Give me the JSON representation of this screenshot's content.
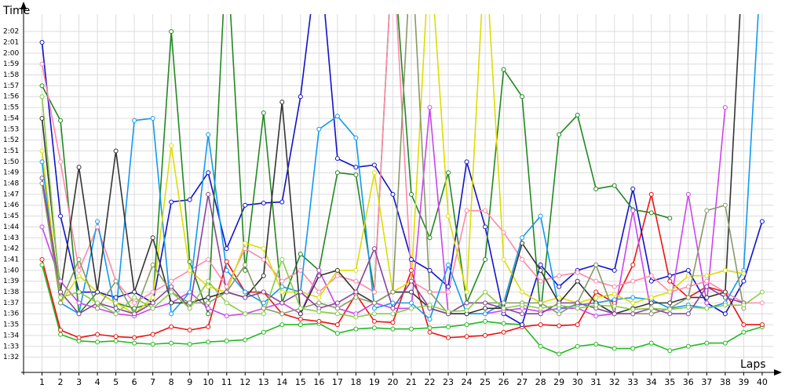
{
  "chart_data": {
    "type": "line",
    "ylabel": "Time",
    "xlabel": "Laps",
    "x": [
      1,
      2,
      3,
      4,
      5,
      6,
      7,
      8,
      9,
      10,
      11,
      12,
      13,
      14,
      15,
      16,
      17,
      18,
      19,
      20,
      21,
      22,
      23,
      24,
      25,
      26,
      27,
      28,
      29,
      30,
      31,
      32,
      33,
      34,
      35,
      36,
      37,
      38,
      39,
      40
    ],
    "xlim": [
      0,
      40.6
    ],
    "xticks": [
      1,
      2,
      3,
      4,
      5,
      6,
      7,
      8,
      9,
      10,
      11,
      12,
      13,
      14,
      15,
      16,
      17,
      18,
      19,
      20,
      21,
      22,
      23,
      24,
      25,
      26,
      27,
      28,
      29,
      30,
      31,
      32,
      33,
      34,
      35,
      36,
      37,
      38,
      39,
      40
    ],
    "ylim": [
      90.6,
      123.6
    ],
    "yticks": [
      {
        "value": 92,
        "label": "1:32"
      },
      {
        "value": 93,
        "label": "1:33"
      },
      {
        "value": 94,
        "label": "1:34"
      },
      {
        "value": 95,
        "label": "1:35"
      },
      {
        "value": 96,
        "label": "1:36"
      },
      {
        "value": 97,
        "label": "1:37"
      },
      {
        "value": 98,
        "label": "1:38"
      },
      {
        "value": 99,
        "label": "1:39"
      },
      {
        "value": 100,
        "label": "1:40"
      },
      {
        "value": 101,
        "label": "1:41"
      },
      {
        "value": 102,
        "label": "1:42"
      },
      {
        "value": 103,
        "label": "1:43"
      },
      {
        "value": 104,
        "label": "1:44"
      },
      {
        "value": 105,
        "label": "1:45"
      },
      {
        "value": 106,
        "label": "1:46"
      },
      {
        "value": 107,
        "label": "1:47"
      },
      {
        "value": 108,
        "label": "1:48"
      },
      {
        "value": 109,
        "label": "1:49"
      },
      {
        "value": 110,
        "label": "1:50"
      },
      {
        "value": 111,
        "label": "1:51"
      },
      {
        "value": 112,
        "label": "1:52"
      },
      {
        "value": 113,
        "label": "1:53"
      },
      {
        "value": 114,
        "label": "1:54"
      },
      {
        "value": 115,
        "label": "1:55"
      },
      {
        "value": 116,
        "label": "1:56"
      },
      {
        "value": 117,
        "label": "1:57"
      },
      {
        "value": 118,
        "label": "1:58"
      },
      {
        "value": 119,
        "label": "1:59"
      },
      {
        "value": 120,
        "label": "2:00"
      },
      {
        "value": 121,
        "label": "2:01"
      },
      {
        "value": 122,
        "label": "2:02"
      }
    ],
    "grid": true,
    "series": [
      {
        "color": "#22bb22",
        "values": [
          100.5,
          94.1,
          93.5,
          93.4,
          93.5,
          93.3,
          93.2,
          93.3,
          93.2,
          93.4,
          93.5,
          93.6,
          94.3,
          95,
          95,
          95.1,
          94.2,
          94.6,
          94.7,
          94.6,
          94.6,
          94.7,
          94.8,
          95,
          95.3,
          95.1,
          95,
          93,
          92.3,
          93,
          93.2,
          92.8,
          92.8,
          93.3,
          92.6,
          93,
          93.3,
          93.3,
          94.3,
          94.8
        ]
      },
      {
        "color": "#ee1111",
        "values": [
          101,
          94.5,
          93.8,
          94.1,
          93.9,
          93.8,
          94.1,
          94.8,
          94.5,
          94.8,
          100.8,
          98,
          98,
          96,
          95.5,
          95.3,
          95,
          97.8,
          95.3,
          95.2,
          100,
          94.3,
          93.8,
          93.9,
          94,
          94.3,
          94.8,
          95,
          94.9,
          95,
          98,
          97,
          100.5,
          107,
          99,
          97.5,
          98.5,
          98,
          95,
          95
        ]
      },
      {
        "color": "#1111cc",
        "values": [
          121,
          105,
          98,
          98,
          97.5,
          98,
          97,
          106.3,
          106.5,
          109,
          102,
          106,
          106.2,
          106.3,
          116,
          130,
          110.3,
          109.5,
          109.7,
          107,
          101,
          100,
          98.5,
          110,
          104,
          96,
          95,
          100.5,
          98.5,
          100,
          100.5,
          100,
          107.5,
          99,
          99.5,
          100,
          97,
          96,
          99,
          104.5
        ]
      },
      {
        "color": "#228822",
        "values": [
          117,
          113.8,
          96,
          98,
          97,
          96.5,
          97,
          122,
          100.8,
          96,
          130,
          100,
          114.5,
          97,
          101.5,
          100,
          109,
          108.8,
          98,
          130,
          107,
          103,
          109,
          97,
          101,
          118.5,
          116,
          96,
          112.5,
          114.3,
          107.5,
          107.8,
          105.6,
          105.3,
          104.8,
          null,
          null,
          null,
          null,
          null
        ]
      },
      {
        "color": "#cc44ee",
        "values": [
          104,
          99,
          97,
          96.5,
          96,
          95.8,
          96.5,
          97,
          98,
          96.5,
          95.8,
          96,
          96.5,
          97,
          96,
          100,
          96.5,
          96,
          97,
          96.5,
          96.5,
          115,
          96,
          96,
          96,
          96.3,
          96.5,
          96.2,
          96.5,
          96.5,
          95.8,
          96,
          105.5,
          96,
          96.5,
          107,
          97,
          115,
          null,
          null
        ]
      },
      {
        "color": "#ff88aa",
        "values": [
          119,
          110,
          100,
          104,
          99,
          97,
          98,
          99,
          100,
          101,
          98.5,
          102,
          101,
          99,
          100,
          98,
          99.5,
          99,
          98,
          130,
          99,
          98,
          98,
          105.5,
          105.5,
          103.5,
          101,
          99,
          99.5,
          99.8,
          99,
          98.5,
          99,
          99.5,
          98,
          98.5,
          99,
          98,
          97,
          97
        ]
      },
      {
        "color": "#1199ee",
        "values": [
          110,
          97,
          96,
          104.5,
          96,
          113.8,
          114,
          96,
          98,
          112.5,
          100,
          98,
          97,
          98.5,
          98,
          113,
          114.2,
          112.2,
          96.5,
          97,
          97,
          95.5,
          100.5,
          96,
          96,
          97,
          103,
          105,
          96.5,
          96.8,
          97,
          97.3,
          97.5,
          97.3,
          96.5,
          96.8,
          96.5,
          97,
          100,
          130
        ]
      },
      {
        "color": "#dddd00",
        "values": [
          111,
          97,
          99.5,
          98,
          97,
          96,
          97.5,
          111.5,
          100,
          98.5,
          98,
          102.5,
          102,
          98,
          98,
          97.5,
          100,
          100,
          109,
          98,
          99,
          130,
          105,
          98,
          130,
          101,
          98,
          97,
          97.5,
          97,
          97.5,
          97.8,
          97,
          97.5,
          98,
          99.5,
          99.5,
          100,
          99.7,
          null
        ]
      },
      {
        "color": "#333333",
        "values": [
          114,
          98,
          109.5,
          98,
          111,
          98,
          103,
          97,
          97,
          97.5,
          98,
          97.5,
          99.5,
          115.5,
          96,
          99.5,
          100,
          98,
          97,
          98,
          98,
          96.5,
          96,
          96,
          96.5,
          96.5,
          102.5,
          100,
          97,
          99,
          97,
          96,
          96.5,
          97,
          97,
          97.5,
          97.5,
          98,
          130,
          null
        ]
      },
      {
        "color": "#889966",
        "values": [
          108,
          97,
          101,
          96.5,
          99,
          96,
          100.5,
          98,
          97,
          97,
          98,
          100.5,
          96.5,
          96,
          96.5,
          97,
          96.5,
          97.5,
          97,
          98,
          130,
          98,
          96,
          97,
          97,
          97,
          97,
          97,
          96,
          97,
          100.5,
          96,
          96,
          96,
          96.5,
          97.5,
          105.5,
          106,
          96.5,
          null
        ]
      },
      {
        "color": "#884499",
        "values": [
          108.5,
          98,
          96,
          97,
          96.5,
          96,
          97,
          98.5,
          96.5,
          107,
          98,
          97.5,
          98,
          97,
          98,
          96.5,
          97,
          98,
          102,
          96.5,
          99,
          96.5,
          96,
          97,
          97,
          96.5,
          96,
          96,
          97,
          97,
          96.5,
          96,
          96,
          96.5,
          96,
          96,
          98.5,
          97.5,
          97,
          null
        ]
      },
      {
        "color": "#88cc44",
        "values": [
          116,
          97.5,
          98,
          97,
          96,
          97.5,
          96.5,
          98,
          96.5,
          99,
          97,
          96,
          96,
          101,
          96.5,
          96.2,
          96,
          95.7,
          96,
          96,
          96.5,
          96.8,
          96.2,
          96.3,
          98,
          96.5,
          96.8,
          96.5,
          96.8,
          96.5,
          96.8,
          96.7,
          96.4,
          96.5,
          96.4,
          96.6,
          96.5,
          96.8,
          96.8,
          98
        ]
      }
    ]
  }
}
